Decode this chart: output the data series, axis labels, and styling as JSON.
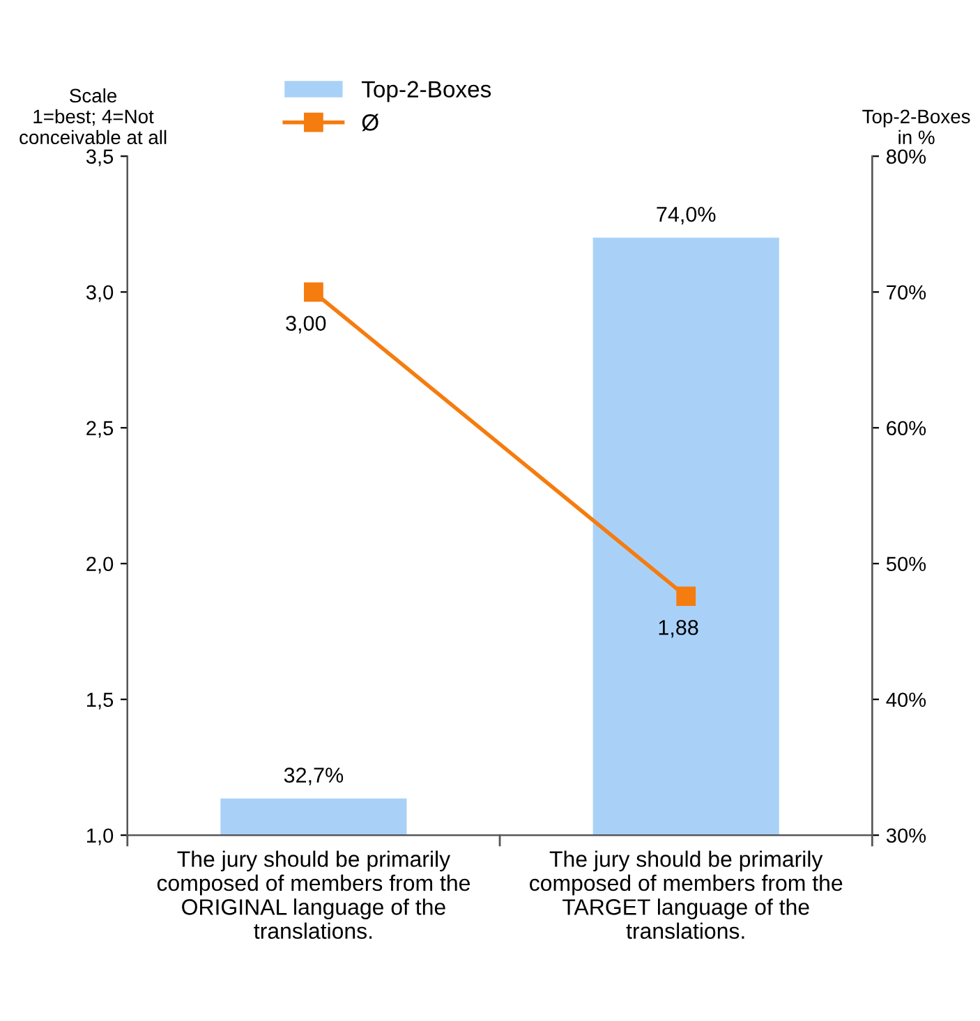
{
  "chart_data": {
    "type": "bar",
    "categories": [
      "The jury should be primarily\ncomposed of members from the\nORIGINAL language of the\ntranslations.",
      "The jury should be primarily\ncomposed of members from the\nTARGET language of the\ntranslations."
    ],
    "ylabel": "Scale\n1=best; 4=Not\nconceivable at all",
    "y2label": "Top-2-Boxes\nin %",
    "series": [
      {
        "name": "Top-2-Boxes",
        "axis": "y2",
        "color": "#a9d1f8",
        "values": [
          32.7,
          74.0
        ],
        "value_labels": [
          "32,7%",
          "74,0%"
        ]
      },
      {
        "name": "Ø",
        "type": "line",
        "axis": "y",
        "color": "#f57c0f",
        "marker": "square",
        "values": [
          3.0,
          1.88
        ],
        "value_labels": [
          "3,00",
          "1,88"
        ]
      }
    ],
    "ylim": [
      1.0,
      3.5
    ],
    "yticks": [
      {
        "value": 1.0,
        "label": "1,0"
      },
      {
        "value": 1.5,
        "label": "1,5"
      },
      {
        "value": 2.0,
        "label": "2,0"
      },
      {
        "value": 2.5,
        "label": "2,5"
      },
      {
        "value": 3.0,
        "label": "3,0"
      },
      {
        "value": 3.5,
        "label": "3,5"
      }
    ],
    "y2lim": [
      30,
      80
    ],
    "y2ticks": [
      {
        "value": 30,
        "label": "30%"
      },
      {
        "value": 40,
        "label": "40%"
      },
      {
        "value": 50,
        "label": "50%"
      },
      {
        "value": 60,
        "label": "60%"
      },
      {
        "value": 70,
        "label": "70%"
      },
      {
        "value": 80,
        "label": "80%"
      }
    ],
    "grid": false,
    "legend": "top"
  }
}
